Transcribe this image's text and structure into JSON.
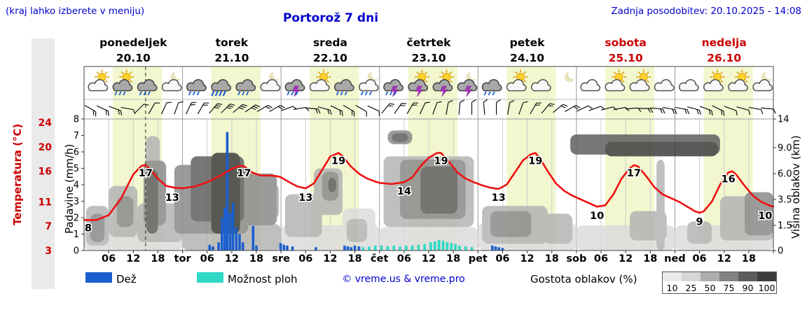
{
  "header": {
    "hint": "(kraj lahko izberete v meniju)",
    "title": "Portorož 7 dni",
    "updated": "Zadnja posodobitev: 20.10.2025 - 14:08"
  },
  "days": [
    {
      "name": "ponedeljek",
      "date": "20.10",
      "weekend": false
    },
    {
      "name": "torek",
      "date": "21.10",
      "weekend": false
    },
    {
      "name": "sreda",
      "date": "22.10",
      "weekend": false
    },
    {
      "name": "četrtek",
      "date": "23.10",
      "weekend": false
    },
    {
      "name": "petek",
      "date": "24.10",
      "weekend": false
    },
    {
      "name": "sobota",
      "date": "25.10",
      "weekend": true
    },
    {
      "name": "nedelja",
      "date": "26.10",
      "weekend": true
    }
  ],
  "axes": {
    "temp_label": "Temperatura (°C)",
    "precip_label": "Padavine (mm/h)",
    "cloud_label": "Višina oblakov (km)",
    "temp_ticks": [
      24,
      20,
      16,
      11,
      7,
      3
    ],
    "precip_ticks": [
      8,
      7,
      6,
      5,
      4,
      3,
      2,
      1,
      0
    ],
    "km_ticks": [
      {
        "v": 14,
        "label": "14"
      },
      {
        "v": 9,
        "label": "9.0"
      },
      {
        "v": 6,
        "label": "6.0"
      },
      {
        "v": 3.5,
        "label": "3.5"
      },
      {
        "v": 1.5,
        "label": "1.5"
      },
      {
        "v": 0,
        "label": "0"
      }
    ],
    "hour_ticks": [
      "06",
      "12",
      "18"
    ],
    "day_abbrevs": [
      "",
      "tor",
      "sre",
      "čet",
      "pet",
      "sob",
      "ned"
    ]
  },
  "legend": {
    "rain": "Dež",
    "showers": "Možnost ploh",
    "copyright": "© vreme.us & vreme.pro",
    "cloud_density": "Gostota oblakov (%)",
    "density_levels": [
      "10",
      "25",
      "50",
      "75",
      "90",
      "100"
    ],
    "density_colors": [
      "#ebebeb",
      "#d6d6d6",
      "#aeaeae",
      "#828282",
      "#5c5c5c",
      "#3d3d3d"
    ]
  },
  "colors": {
    "link_blue": "#0000cc",
    "red": "#cc0000",
    "temp_curve": "#ee1111",
    "rain": "#1a5fd0",
    "showers": "#2fd9c6",
    "day_band": "#f3f7cf",
    "axis_strip": "#eaeaea"
  },
  "chart_data": {
    "type": "line",
    "hours_range": [
      0,
      168
    ],
    "now_line_hour": 15,
    "daylight_hours": [
      7,
      19
    ],
    "temperature": {
      "unit": "°C",
      "points": [
        [
          0,
          8
        ],
        [
          3,
          8
        ],
        [
          6,
          8.8
        ],
        [
          9,
          11.5
        ],
        [
          12,
          15.5
        ],
        [
          14,
          16.9
        ],
        [
          15,
          17
        ],
        [
          16,
          16.4
        ],
        [
          18,
          14.8
        ],
        [
          20,
          13.6
        ],
        [
          22,
          13.3
        ],
        [
          24,
          13.2
        ],
        [
          27,
          13.5
        ],
        [
          30,
          14.2
        ],
        [
          33,
          15.2
        ],
        [
          36,
          16.4
        ],
        [
          38,
          16.9
        ],
        [
          39,
          16.8
        ],
        [
          41,
          15.8
        ],
        [
          43,
          15.3
        ],
        [
          45,
          15.3
        ],
        [
          47,
          15.2
        ],
        [
          48,
          15
        ],
        [
          50,
          14.2
        ],
        [
          52,
          13.5
        ],
        [
          54,
          13.2
        ],
        [
          56,
          14
        ],
        [
          58,
          16.2
        ],
        [
          60,
          18.4
        ],
        [
          62,
          19
        ],
        [
          63,
          18.5
        ],
        [
          65,
          16.8
        ],
        [
          67,
          15.6
        ],
        [
          69,
          14.8
        ],
        [
          71,
          14.3
        ],
        [
          72,
          14.1
        ],
        [
          75,
          13.9
        ],
        [
          78,
          14.2
        ],
        [
          80,
          15
        ],
        [
          82,
          16.8
        ],
        [
          84,
          18.2
        ],
        [
          86,
          19
        ],
        [
          87,
          19
        ],
        [
          89,
          17.5
        ],
        [
          91,
          15.8
        ],
        [
          93,
          14.8
        ],
        [
          95,
          14.2
        ],
        [
          97,
          13.7
        ],
        [
          99,
          13.3
        ],
        [
          101,
          13.1
        ],
        [
          103,
          13.8
        ],
        [
          105,
          15.8
        ],
        [
          107,
          17.8
        ],
        [
          109,
          18.8
        ],
        [
          110,
          19
        ],
        [
          111,
          18.2
        ],
        [
          113,
          16
        ],
        [
          115,
          14
        ],
        [
          117,
          12.8
        ],
        [
          119,
          12
        ],
        [
          121,
          11.4
        ],
        [
          123,
          10.8
        ],
        [
          125,
          10.2
        ],
        [
          127,
          10.4
        ],
        [
          129,
          12.2
        ],
        [
          131,
          14.8
        ],
        [
          133,
          16.5
        ],
        [
          134,
          17
        ],
        [
          135,
          16.8
        ],
        [
          137,
          15.2
        ],
        [
          139,
          13.4
        ],
        [
          141,
          12.2
        ],
        [
          143,
          11.6
        ],
        [
          145,
          11
        ],
        [
          147,
          10.2
        ],
        [
          149,
          9.4
        ],
        [
          150,
          9.2
        ],
        [
          151,
          9.4
        ],
        [
          153,
          11
        ],
        [
          155,
          13.8
        ],
        [
          157,
          15.8
        ],
        [
          158,
          16
        ],
        [
          159,
          15.4
        ],
        [
          161,
          13.6
        ],
        [
          163,
          12
        ],
        [
          165,
          11
        ],
        [
          167,
          10.4
        ],
        [
          168,
          10.2
        ]
      ],
      "labels": [
        {
          "t": 1,
          "v": 8,
          "text": "8"
        },
        {
          "t": 15,
          "v": 17,
          "text": "17"
        },
        {
          "t": 21.5,
          "v": 13,
          "text": "13"
        },
        {
          "t": 39,
          "v": 17,
          "text": "17"
        },
        {
          "t": 54,
          "v": 13,
          "text": "13"
        },
        {
          "t": 62,
          "v": 19,
          "text": "19"
        },
        {
          "t": 78,
          "v": 14,
          "text": "14"
        },
        {
          "t": 87,
          "v": 19,
          "text": "19"
        },
        {
          "t": 101,
          "v": 13,
          "text": "13"
        },
        {
          "t": 110,
          "v": 19,
          "text": "19"
        },
        {
          "t": 125,
          "v": 10,
          "text": "10"
        },
        {
          "t": 134,
          "v": 17,
          "text": "17"
        },
        {
          "t": 150,
          "v": 9,
          "text": "9"
        },
        {
          "t": 157,
          "v": 16,
          "text": "16"
        },
        {
          "t": 166,
          "v": 10,
          "text": "10"
        }
      ]
    },
    "rain_mm_per_h": [
      [
        30.6,
        0.35
      ],
      [
        31.4,
        0.25
      ],
      [
        32.8,
        0.5
      ],
      [
        33.6,
        2.0
      ],
      [
        34.3,
        2.6
      ],
      [
        34.9,
        7.2
      ],
      [
        35.6,
        2.3
      ],
      [
        36.3,
        2.9
      ],
      [
        37.1,
        1.4
      ],
      [
        37.9,
        1.0
      ],
      [
        38.7,
        0.5
      ],
      [
        41.2,
        1.5
      ],
      [
        42.0,
        0.3
      ],
      [
        47.9,
        0.45
      ],
      [
        48.7,
        0.35
      ],
      [
        49.5,
        0.3
      ],
      [
        50.8,
        0.25
      ],
      [
        56.5,
        0.2
      ],
      [
        63.5,
        0.3
      ],
      [
        64.3,
        0.25
      ],
      [
        65.1,
        0.2
      ],
      [
        66,
        0.3
      ],
      [
        67,
        0.25
      ],
      [
        99.5,
        0.3
      ],
      [
        100.3,
        0.25
      ],
      [
        101.1,
        0.2
      ],
      [
        102,
        0.15
      ]
    ],
    "showers_mm_per_h": [
      [
        68,
        0.2
      ],
      [
        69.5,
        0.25
      ],
      [
        71,
        0.3
      ],
      [
        72.5,
        0.3
      ],
      [
        74,
        0.25
      ],
      [
        75.5,
        0.3
      ],
      [
        77,
        0.25
      ],
      [
        78.5,
        0.3
      ],
      [
        80,
        0.3
      ],
      [
        81.5,
        0.35
      ],
      [
        83,
        0.4
      ],
      [
        84.5,
        0.5
      ],
      [
        85.5,
        0.55
      ],
      [
        86.5,
        0.65
      ],
      [
        87.5,
        0.6
      ],
      [
        88.5,
        0.5
      ],
      [
        89.5,
        0.45
      ],
      [
        90.5,
        0.4
      ],
      [
        91.5,
        0.3
      ],
      [
        93,
        0.25
      ],
      [
        94.5,
        0.2
      ]
    ],
    "cloud_regions": [
      [
        0,
        24,
        0,
        1.6,
        25
      ],
      [
        0.5,
        6,
        0.3,
        3.0,
        50
      ],
      [
        1.5,
        5,
        0.5,
        2.4,
        75
      ],
      [
        6,
        13,
        0.8,
        4.8,
        50
      ],
      [
        8,
        12,
        1.4,
        3.8,
        75
      ],
      [
        13,
        24,
        0.5,
        3.2,
        50
      ],
      [
        14.5,
        20,
        1.5,
        7.5,
        75
      ],
      [
        15,
        18.5,
        2,
        11,
        50
      ],
      [
        15.2,
        18,
        1,
        6.5,
        90
      ],
      [
        22,
        40,
        1,
        7,
        75
      ],
      [
        24,
        48,
        0,
        1.6,
        50
      ],
      [
        26,
        39,
        1.8,
        8,
        90
      ],
      [
        31,
        38,
        1,
        8.4,
        100
      ],
      [
        38,
        47,
        1.5,
        6,
        75
      ],
      [
        44,
        47.5,
        2,
        5,
        50
      ],
      [
        48,
        72,
        0,
        1.5,
        25
      ],
      [
        49,
        58,
        0.8,
        4,
        50
      ],
      [
        56,
        63,
        2.3,
        6.6,
        50
      ],
      [
        58,
        62,
        3.4,
        6.2,
        75
      ],
      [
        59.5,
        61.5,
        4.2,
        5.6,
        90
      ],
      [
        63,
        71,
        0.2,
        2.8,
        25
      ],
      [
        64,
        69,
        0.5,
        2,
        50
      ],
      [
        74,
        80,
        9.6,
        12,
        75
      ],
      [
        75,
        79,
        10,
        11.5,
        90
      ],
      [
        73,
        95,
        1.4,
        8,
        50
      ],
      [
        77,
        93,
        2,
        7.6,
        75
      ],
      [
        82,
        91,
        2.4,
        6.8,
        90
      ],
      [
        72,
        96,
        0,
        1.4,
        25
      ],
      [
        96,
        120,
        0,
        1.7,
        25
      ],
      [
        97,
        113,
        0.4,
        3,
        50
      ],
      [
        99,
        109,
        0.8,
        2.6,
        75
      ],
      [
        112,
        119,
        0.4,
        2.4,
        50
      ],
      [
        118.5,
        155,
        8.2,
        11.3,
        90
      ],
      [
        127,
        154.5,
        8,
        10,
        100
      ],
      [
        120,
        144,
        0,
        1.5,
        25
      ],
      [
        133,
        142,
        0.6,
        2.6,
        50
      ],
      [
        139.5,
        141.5,
        0,
        7.6,
        50
      ],
      [
        144,
        168,
        0,
        1.5,
        25
      ],
      [
        147,
        153,
        0.4,
        1.8,
        50
      ],
      [
        155,
        168,
        0.6,
        3.8,
        50
      ],
      [
        161,
        168,
        0.9,
        4.2,
        75
      ]
    ],
    "cloud_density_palette": {
      "25": "#dcdcdc",
      "50": "#b4b4b4",
      "75": "#8a8a8a",
      "90": "#606060",
      "100": "#3e3e3e"
    },
    "icons": {
      "hours_offsets": [
        3,
        9,
        15,
        21
      ],
      "types": [
        "sun+cloud",
        "sun+gcloud+rain",
        "gcloud+rain",
        "moon+cloud",
        "gcloud+rain",
        "gcloud+heavyrain",
        "gcloud+rain",
        "moon+cloud",
        "gcloud+bolt+rain",
        "sun+cloud",
        "gcloud+rain",
        "moon+cloud+rain",
        "gcloud+bolt+rain",
        "sun+gcloud+bolt",
        "sun+gcloud+bolt",
        "moon+gcloud+bolt",
        "gcloud+rain",
        "sun+cloud",
        "cloud",
        "moon",
        "cloud",
        "sun+cloud",
        "sun+cloud",
        "cloud",
        "cloud",
        "sun+cloud",
        "sun+cloud",
        "moon+cloud"
      ]
    },
    "wind": {
      "angles": [
        120,
        115,
        110,
        100,
        45,
        30,
        25,
        20,
        25,
        30,
        40,
        45,
        50,
        55,
        60,
        60,
        70,
        80,
        95,
        105,
        115,
        120,
        120,
        115,
        40,
        35,
        30,
        25,
        20,
        10,
        5,
        0,
        355,
        0,
        10,
        20,
        30,
        40,
        50,
        60,
        65,
        70,
        75,
        80,
        85,
        90,
        95,
        100,
        100,
        105,
        110,
        115,
        110,
        105,
        100,
        95
      ],
      "ticks": [
        2,
        2,
        2,
        1,
        1,
        1,
        1,
        1,
        2,
        2,
        3,
        3,
        3,
        3,
        2,
        2,
        1,
        1,
        2,
        2,
        2,
        2,
        1,
        1,
        2,
        2,
        2,
        1,
        1,
        1,
        1,
        1,
        1,
        1,
        1,
        1,
        2,
        2,
        2,
        2,
        1,
        1,
        1,
        1,
        1,
        2,
        2,
        2,
        2,
        2,
        2,
        2,
        1,
        1,
        1,
        1
      ]
    }
  }
}
